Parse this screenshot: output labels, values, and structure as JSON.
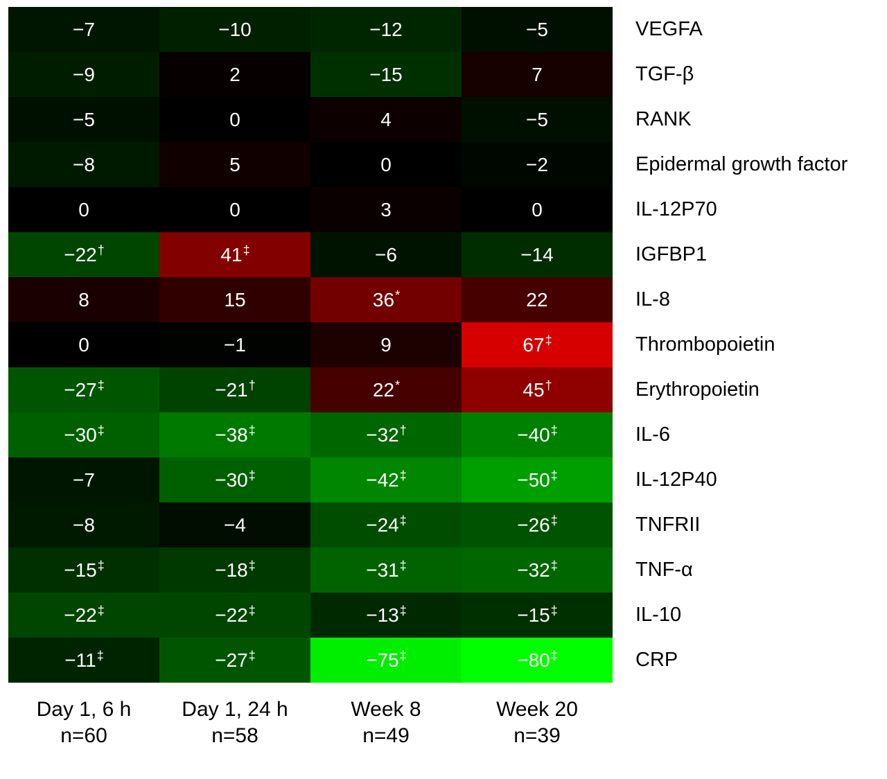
{
  "chart_data": {
    "type": "heatmap",
    "title": "",
    "value_meaning": "percent change from baseline",
    "colormap": {
      "zero_color": "#000000",
      "negative_color": "#00ff00",
      "positive_color": "#ff0000",
      "scale_max_abs": 80,
      "text_color": "#ffffff",
      "label_color": "#000000"
    },
    "columns": [
      {
        "label": "Day 1, 6 h",
        "n_label": "n=60"
      },
      {
        "label": "Day 1, 24 h",
        "n_label": "n=58"
      },
      {
        "label": "Week 8",
        "n_label": "n=49"
      },
      {
        "label": "Week 20",
        "n_label": "n=39"
      }
    ],
    "rows": [
      {
        "label": "VEGFA",
        "values": [
          -7,
          -10,
          -12,
          -5
        ],
        "markers": [
          "",
          "",
          "",
          ""
        ]
      },
      {
        "label": "TGF-β",
        "values": [
          -9,
          2,
          -15,
          7
        ],
        "markers": [
          "",
          "",
          "",
          ""
        ]
      },
      {
        "label": "RANK",
        "values": [
          -5,
          0,
          4,
          -5
        ],
        "markers": [
          "",
          "",
          "",
          ""
        ]
      },
      {
        "label": "Epidermal growth factor",
        "values": [
          -8,
          5,
          0,
          -2
        ],
        "markers": [
          "",
          "",
          "",
          ""
        ]
      },
      {
        "label": "IL-12P70",
        "values": [
          0,
          0,
          3,
          0
        ],
        "markers": [
          "",
          "",
          "",
          ""
        ]
      },
      {
        "label": "IGFBP1",
        "values": [
          -22,
          41,
          -6,
          -14
        ],
        "markers": [
          "†",
          "‡",
          "",
          ""
        ]
      },
      {
        "label": "IL-8",
        "values": [
          8,
          15,
          36,
          22
        ],
        "markers": [
          "",
          "",
          "*",
          ""
        ]
      },
      {
        "label": "Thrombopoietin",
        "values": [
          0,
          -1,
          9,
          67
        ],
        "markers": [
          "",
          "",
          "",
          "‡"
        ]
      },
      {
        "label": "Erythropoietin",
        "values": [
          -27,
          -21,
          22,
          45
        ],
        "markers": [
          "‡",
          "†",
          "*",
          "†"
        ]
      },
      {
        "label": "IL-6",
        "values": [
          -30,
          -38,
          -32,
          -40
        ],
        "markers": [
          "‡",
          "‡",
          "†",
          "‡"
        ]
      },
      {
        "label": "IL-12P40",
        "values": [
          -7,
          -30,
          -42,
          -50
        ],
        "markers": [
          "",
          "‡",
          "‡",
          "‡"
        ]
      },
      {
        "label": "TNFRII",
        "values": [
          -8,
          -4,
          -24,
          -26
        ],
        "markers": [
          "",
          "",
          "‡",
          "‡"
        ]
      },
      {
        "label": "TNF-α",
        "values": [
          -15,
          -18,
          -31,
          -32
        ],
        "markers": [
          "‡",
          "‡",
          "‡",
          "‡"
        ]
      },
      {
        "label": "IL-10",
        "values": [
          -22,
          -22,
          -13,
          -15
        ],
        "markers": [
          "‡",
          "‡",
          "‡",
          "‡"
        ]
      },
      {
        "label": "CRP",
        "values": [
          -11,
          -27,
          -75,
          -80
        ],
        "markers": [
          "‡",
          "‡",
          "‡",
          "‡"
        ]
      }
    ]
  }
}
